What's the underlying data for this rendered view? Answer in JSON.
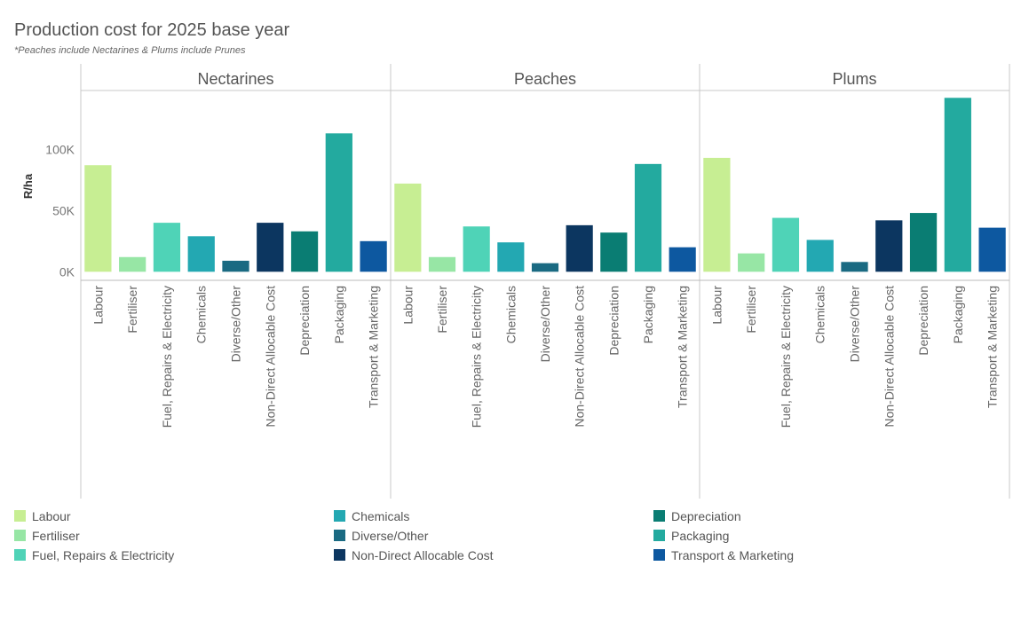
{
  "chart_data": {
    "type": "bar",
    "title": "Production cost for 2025 base year",
    "subtitle": "*Peaches include Nectarines & Plums include Prunes",
    "ylabel": "R/ha",
    "ylim": [
      -7000,
      148000
    ],
    "yticks": [
      {
        "value": 0,
        "label": "0K"
      },
      {
        "value": 50000,
        "label": "50K"
      },
      {
        "value": 100000,
        "label": "100K"
      }
    ],
    "categories": [
      "Labour",
      "Fertiliser",
      "Fuel, Repairs & Electricity",
      "Chemicals",
      "Diverse/Other",
      "Non-Direct Allocable Cost",
      "Depreciation",
      "Packaging",
      "Transport & Marketing"
    ],
    "colors": [
      "#c7ee93",
      "#97e6a5",
      "#4fd3b7",
      "#23a8b2",
      "#1a6a82",
      "#0c3660",
      "#0a7d73",
      "#23aa9f",
      "#0d58a0"
    ],
    "panels": [
      {
        "name": "Nectarines",
        "values": [
          87000,
          12000,
          40000,
          29000,
          9000,
          40000,
          33000,
          113000,
          25000
        ]
      },
      {
        "name": "Peaches",
        "values": [
          72000,
          12000,
          37000,
          24000,
          7000,
          38000,
          32000,
          88000,
          20000
        ]
      },
      {
        "name": "Plums",
        "values": [
          93000,
          15000,
          44000,
          26000,
          8000,
          42000,
          48000,
          142000,
          36000
        ]
      }
    ],
    "legend_position": "bottom",
    "grid": false
  }
}
